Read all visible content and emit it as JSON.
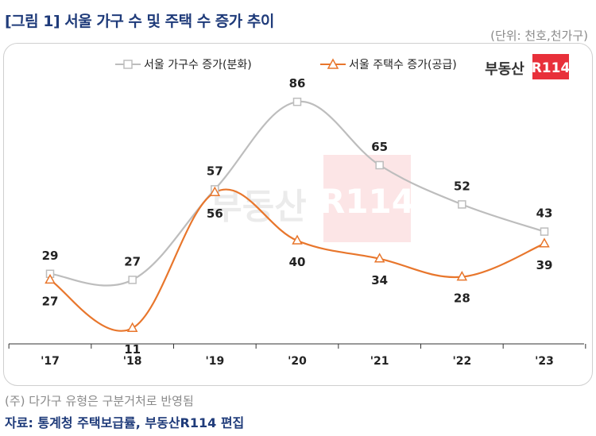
{
  "header": {
    "title": "[그림 1] 서울 가구 수 및 주택 수 증가 추이",
    "unit": "(단위: 천호,천가구)"
  },
  "logo": {
    "text_dark": "부동산",
    "text_red": "R114"
  },
  "colors": {
    "series1": "#bdbdbd",
    "series2": "#e8762c",
    "title": "#1f3b7a",
    "logo_red": "#e8303a"
  },
  "chart_data": {
    "type": "line",
    "categories": [
      "'17",
      "'18",
      "'19",
      "'20",
      "'21",
      "'22",
      "'23"
    ],
    "series": [
      {
        "name": "서울 가구수 증가(분화)",
        "values": [
          29,
          27,
          57,
          86,
          65,
          52,
          43
        ],
        "marker": "square"
      },
      {
        "name": "서울 주택수 증가(공급)",
        "values": [
          27,
          11,
          56,
          40,
          34,
          28,
          39
        ],
        "marker": "triangle"
      }
    ],
    "ylim": [
      0,
      100
    ],
    "grid": false,
    "legend": "top"
  },
  "footer": {
    "note": "(주) 다가구 유형은 구분거처로 반영됨",
    "source": "자료: 통계청 주택보급률, 부동산R114 편집"
  }
}
